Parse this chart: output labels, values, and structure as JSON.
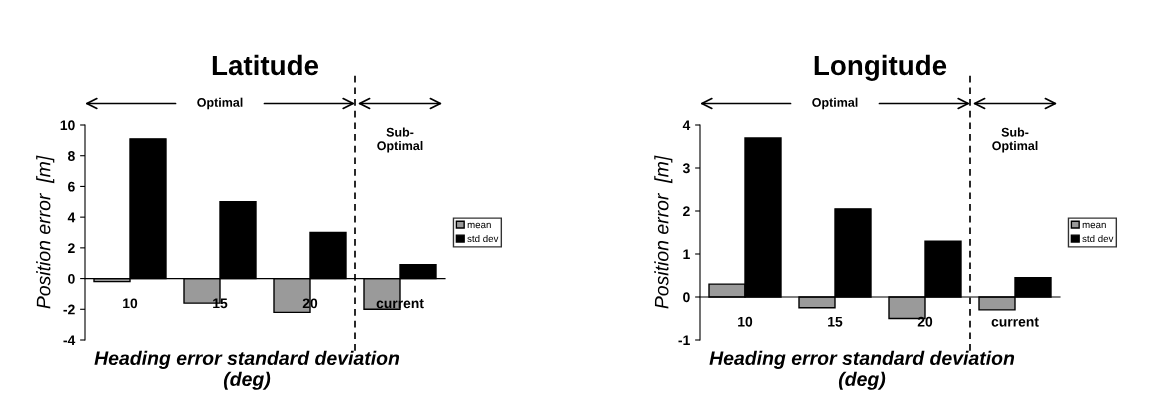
{
  "chart_data": [
    {
      "type": "bar",
      "title": "Latitude",
      "xlabel": "Heading error standard deviation\n(deg)",
      "ylabel": "Position error  [m]",
      "categories": [
        "10",
        "15",
        "20",
        "current"
      ],
      "series": [
        {
          "name": "mean",
          "color": "#9a9a9a",
          "values": [
            -0.2,
            -1.6,
            -2.2,
            -2.0
          ]
        },
        {
          "name": "std dev",
          "color": "#000000",
          "values": [
            9.1,
            5.0,
            3.0,
            0.9
          ]
        }
      ],
      "ylim": [
        -4,
        10
      ],
      "yticks": [
        -4,
        -2,
        0,
        2,
        4,
        6,
        8,
        10
      ],
      "grid": false,
      "legend": "right",
      "annotations": [
        "Optimal",
        "Sub-\nOptimal"
      ]
    },
    {
      "type": "bar",
      "title": "Longitude",
      "xlabel": "Heading error standard deviation\n(deg)",
      "ylabel": "Position error  [m]",
      "categories": [
        "10",
        "15",
        "20",
        "current"
      ],
      "series": [
        {
          "name": "mean",
          "color": "#9a9a9a",
          "values": [
            0.3,
            -0.25,
            -0.5,
            -0.3
          ]
        },
        {
          "name": "std dev",
          "color": "#000000",
          "values": [
            3.7,
            2.05,
            1.3,
            0.45
          ]
        }
      ],
      "ylim": [
        -1,
        4
      ],
      "yticks": [
        -1,
        0,
        1,
        2,
        3,
        4
      ],
      "grid": false,
      "legend": "right",
      "annotations": [
        "Optimal",
        "Sub-\nOptimal"
      ]
    }
  ]
}
